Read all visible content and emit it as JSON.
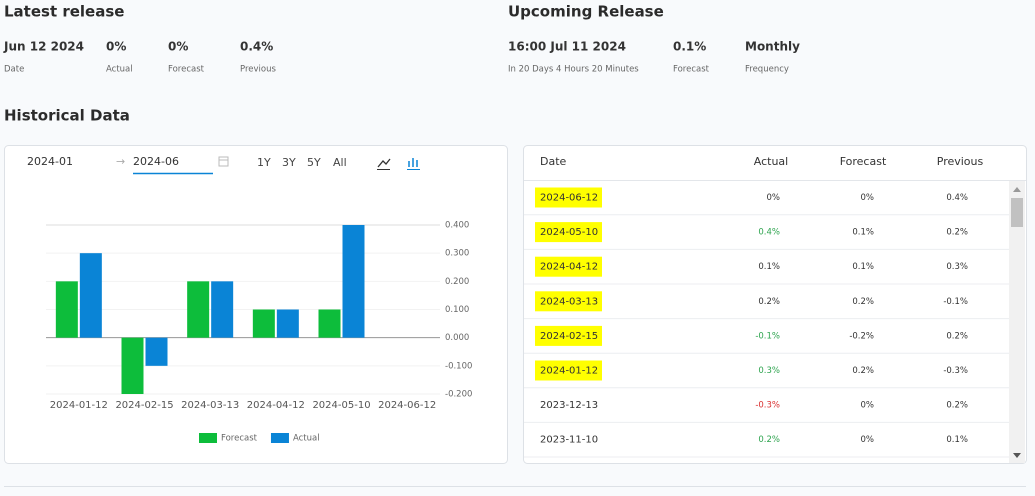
{
  "latest": {
    "title": "Latest release",
    "items": [
      {
        "value": "Jun 12 2024",
        "label": "Date"
      },
      {
        "value": "0%",
        "label": "Actual"
      },
      {
        "value": "0%",
        "label": "Forecast"
      },
      {
        "value": "0.4%",
        "label": "Previous"
      }
    ]
  },
  "upcoming": {
    "title": "Upcoming Release",
    "items": [
      {
        "value": "16:00 Jul 11 2024",
        "label": "In 20 Days 4 Hours 20 Minutes"
      },
      {
        "value": "0.1%",
        "label": "Forecast"
      },
      {
        "value": "Monthly",
        "label": "Frequency"
      }
    ]
  },
  "historical_title": "Historical Data",
  "controls": {
    "from": "2024-01",
    "to": "2024-06",
    "ranges": [
      "1Y",
      "3Y",
      "5Y",
      "All"
    ]
  },
  "chart_data": {
    "type": "bar",
    "categories": [
      "2024-01-12",
      "2024-02-15",
      "2024-03-13",
      "2024-04-12",
      "2024-05-10",
      "2024-06-12"
    ],
    "series": [
      {
        "name": "Forecast",
        "color": "#0dbd3b",
        "values": [
          0.2,
          -0.2,
          0.2,
          0.1,
          0.1,
          0
        ]
      },
      {
        "name": "Actual",
        "color": "#0a84d6",
        "values": [
          0.3,
          -0.1,
          0.2,
          0.1,
          0.4,
          0
        ]
      }
    ],
    "ylim": [
      -0.2,
      0.4
    ],
    "yticks": [
      {
        "value": 0.4,
        "label": "0.400"
      },
      {
        "value": 0.3,
        "label": "0.300"
      },
      {
        "value": 0.2,
        "label": "0.200"
      },
      {
        "value": 0.1,
        "label": "0.100"
      },
      {
        "value": 0,
        "label": "0.000"
      },
      {
        "value": -0.1,
        "label": "-0.100"
      },
      {
        "value": -0.2,
        "label": "-0.200"
      }
    ],
    "legend": "bottom"
  },
  "table": {
    "header": [
      "Date",
      "Actual",
      "Forecast",
      "Previous"
    ],
    "rows": [
      {
        "date": "2024-06-12",
        "actual": "0%",
        "forecast": "0%",
        "previous": "0.4%",
        "highlight": true,
        "actual_color": "#333333"
      },
      {
        "date": "2024-05-10",
        "actual": "0.4%",
        "forecast": "0.1%",
        "previous": "0.2%",
        "highlight": true,
        "actual_color": "#2ea44f"
      },
      {
        "date": "2024-04-12",
        "actual": "0.1%",
        "forecast": "0.1%",
        "previous": "0.3%",
        "highlight": true,
        "actual_color": "#333333"
      },
      {
        "date": "2024-03-13",
        "actual": "0.2%",
        "forecast": "0.2%",
        "previous": "-0.1%",
        "highlight": true,
        "actual_color": "#333333"
      },
      {
        "date": "2024-02-15",
        "actual": "-0.1%",
        "forecast": "-0.2%",
        "previous": "0.2%",
        "highlight": true,
        "actual_color": "#2ea44f"
      },
      {
        "date": "2024-01-12",
        "actual": "0.3%",
        "forecast": "0.2%",
        "previous": "-0.3%",
        "highlight": true,
        "actual_color": "#2ea44f"
      },
      {
        "date": "2023-12-13",
        "actual": "-0.3%",
        "forecast": "0%",
        "previous": "0.2%",
        "highlight": false,
        "actual_color": "#d93030"
      },
      {
        "date": "2023-11-10",
        "actual": "0.2%",
        "forecast": "0%",
        "previous": "0.1%",
        "highlight": false,
        "actual_color": "#2ea44f"
      }
    ]
  }
}
